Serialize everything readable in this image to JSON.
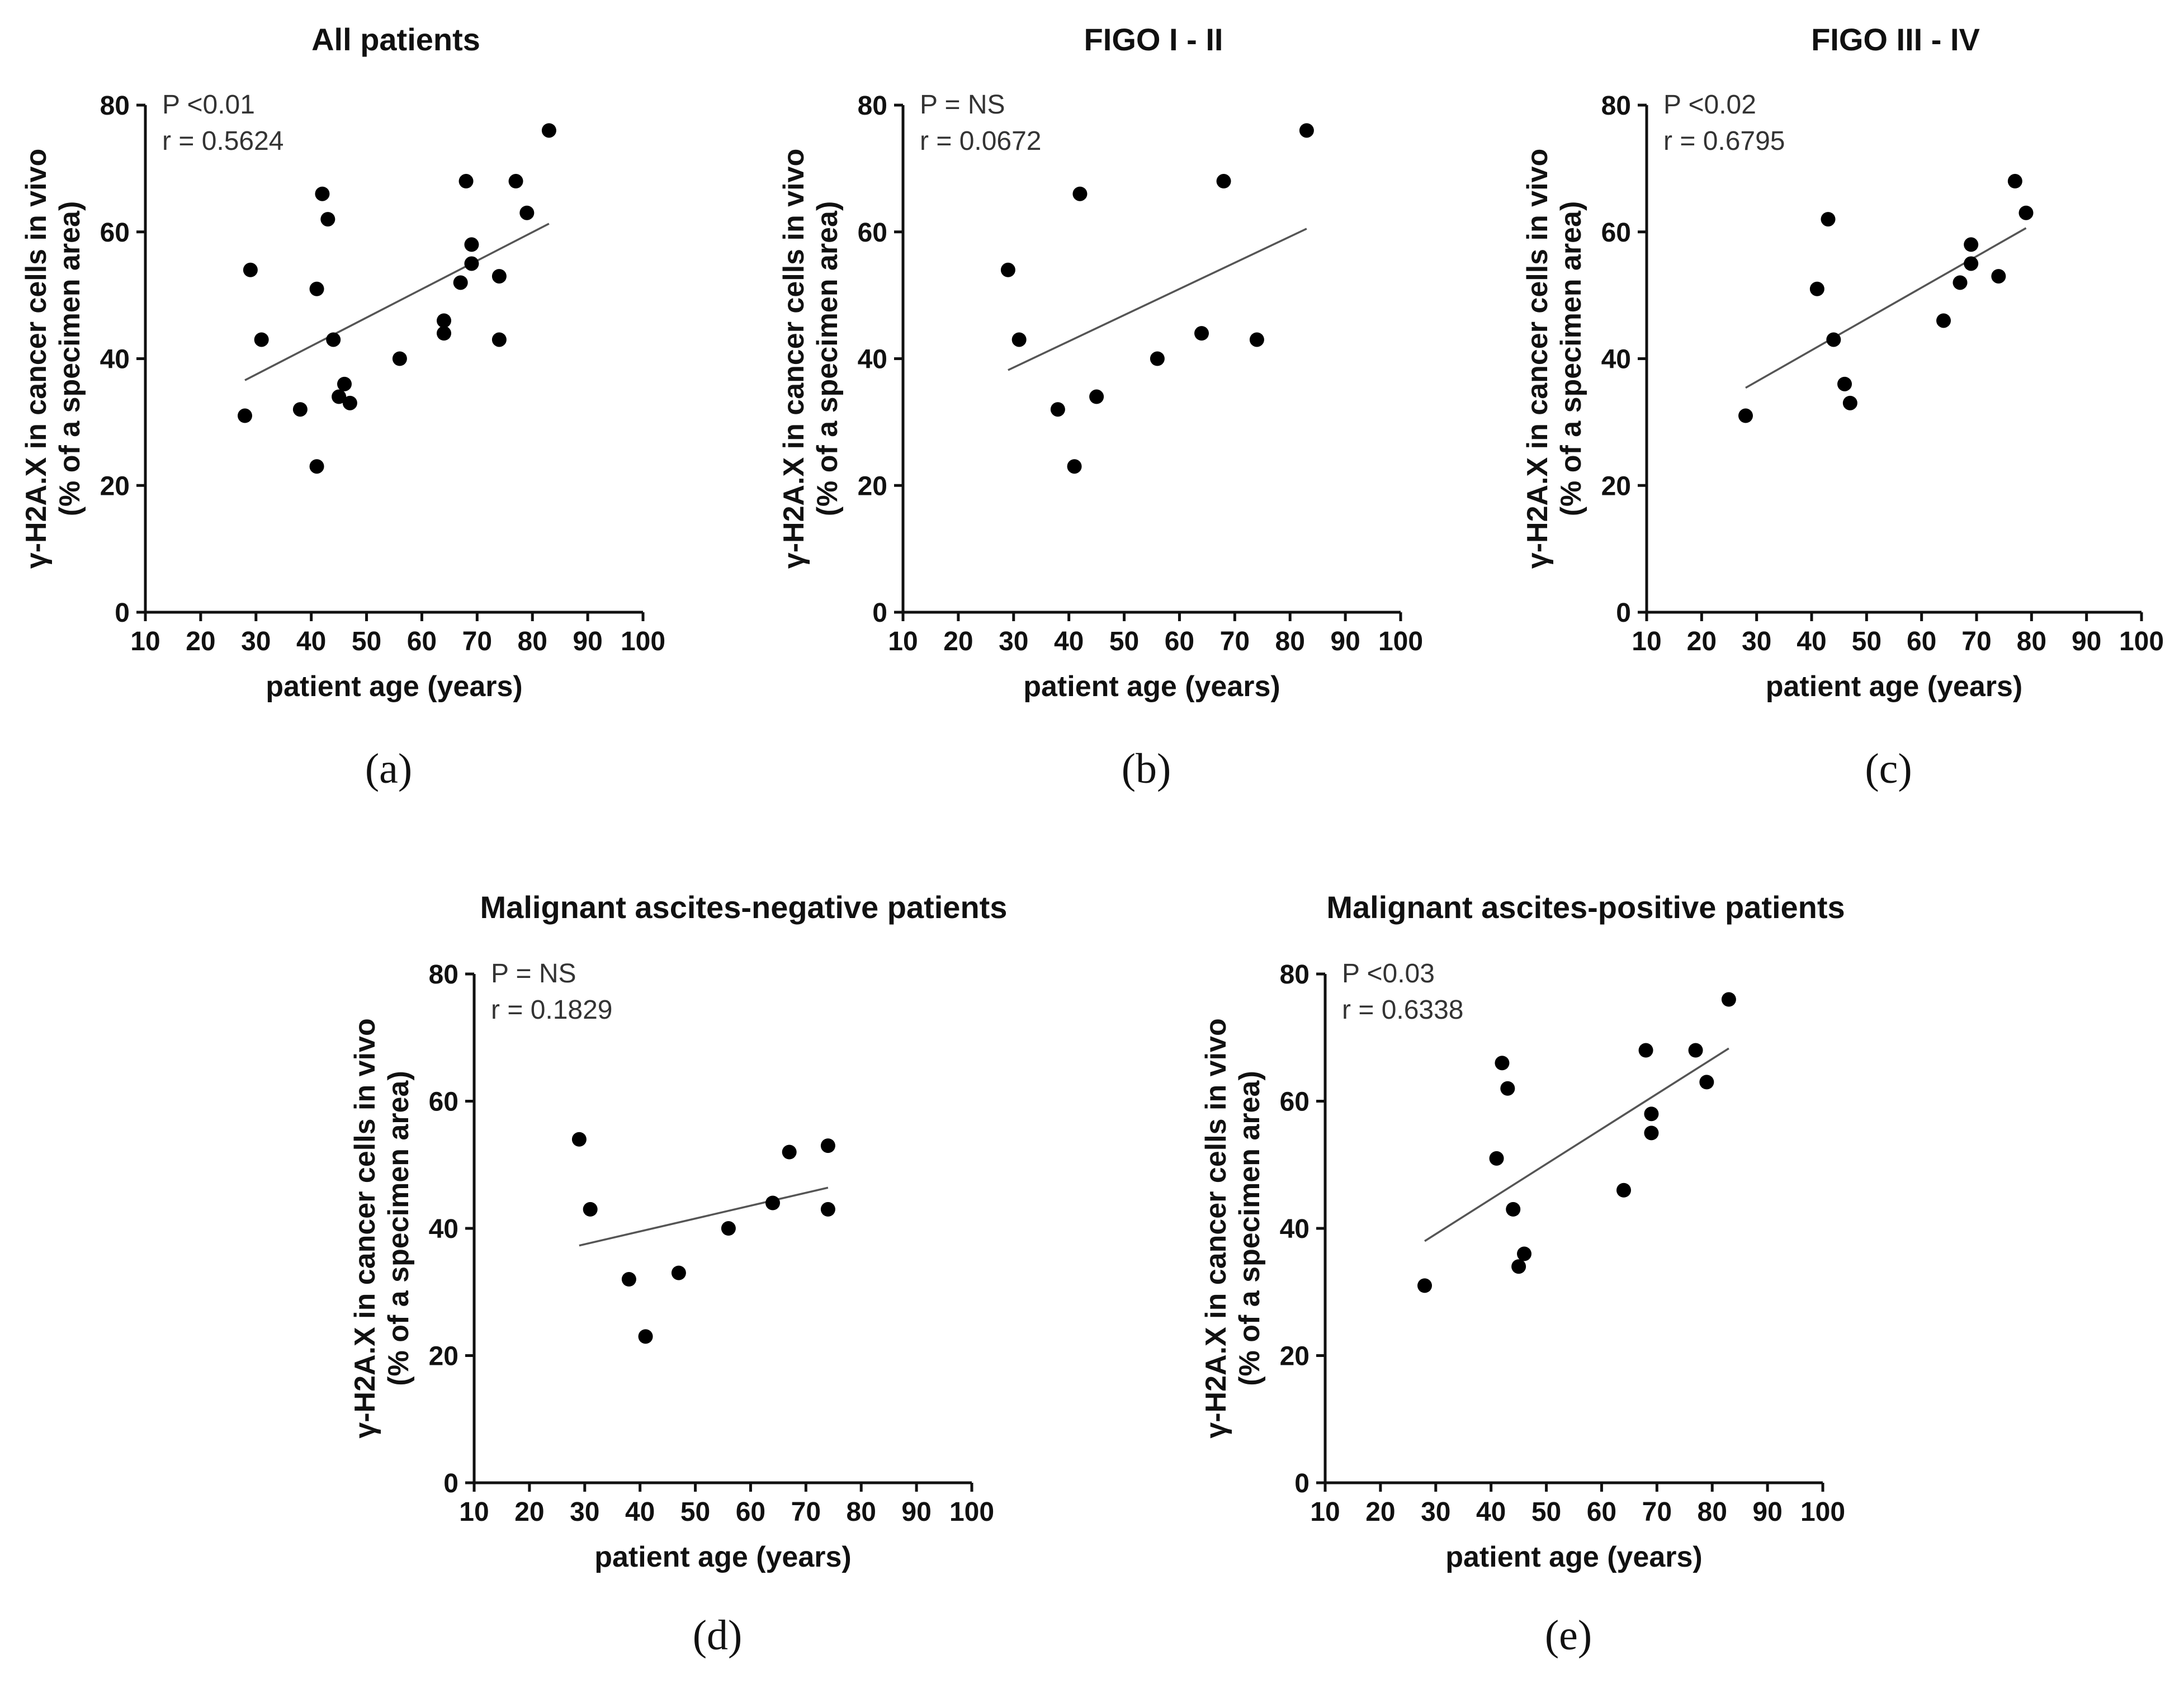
{
  "chart_data": [
    {
      "type": "scatter",
      "title": "All patients",
      "panel_label": "(a)",
      "xlabel": "patient age (years)",
      "ylabel_line1": "γ-H2A.X in cancer cells in vivo",
      "ylabel_line2": "(% of a specimen area)",
      "xlim": [
        10,
        100
      ],
      "ylim": [
        0,
        80
      ],
      "xticks": [
        10,
        20,
        30,
        40,
        50,
        60,
        70,
        80,
        90,
        100
      ],
      "yticks": [
        0,
        20,
        40,
        60,
        80
      ],
      "stat_p": "P <0.01",
      "stat_r": "r = 0.5624",
      "points": [
        [
          28,
          31
        ],
        [
          29,
          54
        ],
        [
          31,
          43
        ],
        [
          38,
          32
        ],
        [
          41,
          51
        ],
        [
          41,
          23
        ],
        [
          42,
          66
        ],
        [
          43,
          62
        ],
        [
          44,
          43
        ],
        [
          45,
          34
        ],
        [
          46,
          36
        ],
        [
          47,
          33
        ],
        [
          56,
          40
        ],
        [
          64,
          46
        ],
        [
          64,
          44
        ],
        [
          67,
          52
        ],
        [
          68,
          68
        ],
        [
          69,
          58
        ],
        [
          69,
          55
        ],
        [
          74,
          53
        ],
        [
          74,
          43
        ],
        [
          77,
          68
        ],
        [
          79,
          63
        ],
        [
          83,
          76
        ]
      ],
      "fit_line": [
        [
          28,
          36.6
        ],
        [
          83,
          61.3
        ]
      ]
    },
    {
      "type": "scatter",
      "title": "FIGO I - II",
      "panel_label": "(b)",
      "xlabel": "patient age (years)",
      "ylabel_line1": "γ-H2A.X in cancer cells in vivo",
      "ylabel_line2": "(% of a specimen area)",
      "xlim": [
        10,
        100
      ],
      "ylim": [
        0,
        80
      ],
      "xticks": [
        10,
        20,
        30,
        40,
        50,
        60,
        70,
        80,
        90,
        100
      ],
      "yticks": [
        0,
        20,
        40,
        60,
        80
      ],
      "stat_p": "P = NS",
      "stat_r": "r = 0.0672",
      "points": [
        [
          29,
          54
        ],
        [
          31,
          43
        ],
        [
          38,
          32
        ],
        [
          41,
          23
        ],
        [
          42,
          66
        ],
        [
          45,
          34
        ],
        [
          56,
          40
        ],
        [
          64,
          44
        ],
        [
          68,
          68
        ],
        [
          74,
          43
        ],
        [
          83,
          76
        ]
      ],
      "fit_line": [
        [
          29,
          38.2
        ],
        [
          83,
          60.5
        ]
      ]
    },
    {
      "type": "scatter",
      "title": "FIGO III - IV",
      "panel_label": "(c)",
      "xlabel": "patient age (years)",
      "ylabel_line1": "γ-H2A.X in cancer cells in vivo",
      "ylabel_line2": "(% of a specimen area)",
      "xlim": [
        10,
        100
      ],
      "ylim": [
        0,
        80
      ],
      "xticks": [
        10,
        20,
        30,
        40,
        50,
        60,
        70,
        80,
        90,
        100
      ],
      "yticks": [
        0,
        20,
        40,
        60,
        80
      ],
      "stat_p": "P <0.02",
      "stat_r": "r = 0.6795",
      "points": [
        [
          28,
          31
        ],
        [
          41,
          51
        ],
        [
          43,
          62
        ],
        [
          44,
          43
        ],
        [
          46,
          36
        ],
        [
          47,
          33
        ],
        [
          64,
          46
        ],
        [
          67,
          52
        ],
        [
          69,
          58
        ],
        [
          69,
          55
        ],
        [
          74,
          53
        ],
        [
          77,
          68
        ],
        [
          79,
          63
        ]
      ],
      "fit_line": [
        [
          28,
          35.4
        ],
        [
          79,
          60.6
        ]
      ]
    },
    {
      "type": "scatter",
      "title": "Malignant ascites-negative patients",
      "panel_label": "(d)",
      "xlabel": "patient age (years)",
      "ylabel_line1": "γ-H2A.X in cancer cells in vivo",
      "ylabel_line2": "(% of a specimen area)",
      "xlim": [
        10,
        100
      ],
      "ylim": [
        0,
        80
      ],
      "xticks": [
        10,
        20,
        30,
        40,
        50,
        60,
        70,
        80,
        90,
        100
      ],
      "yticks": [
        0,
        20,
        40,
        60,
        80
      ],
      "stat_p": "P = NS",
      "stat_r": "r = 0.1829",
      "points": [
        [
          29,
          54
        ],
        [
          31,
          43
        ],
        [
          38,
          32
        ],
        [
          41,
          23
        ],
        [
          47,
          33
        ],
        [
          56,
          40
        ],
        [
          64,
          44
        ],
        [
          67,
          52
        ],
        [
          74,
          53
        ],
        [
          74,
          43
        ]
      ],
      "fit_line": [
        [
          29,
          37.3
        ],
        [
          74,
          46.4
        ]
      ]
    },
    {
      "type": "scatter",
      "title": "Malignant ascites-positive patients",
      "panel_label": "(e)",
      "xlabel": "patient age (years)",
      "ylabel_line1": "γ-H2A.X in cancer cells in vivo",
      "ylabel_line2": "(% of a specimen area)",
      "xlim": [
        10,
        100
      ],
      "ylim": [
        0,
        80
      ],
      "xticks": [
        10,
        20,
        30,
        40,
        50,
        60,
        70,
        80,
        90,
        100
      ],
      "yticks": [
        0,
        20,
        40,
        60,
        80
      ],
      "stat_p": "P <0.03",
      "stat_r": "r = 0.6338",
      "points": [
        [
          28,
          31
        ],
        [
          41,
          51
        ],
        [
          42,
          66
        ],
        [
          43,
          62
        ],
        [
          44,
          43
        ],
        [
          45,
          34
        ],
        [
          46,
          36
        ],
        [
          64,
          46
        ],
        [
          68,
          68
        ],
        [
          69,
          58
        ],
        [
          69,
          55
        ],
        [
          77,
          68
        ],
        [
          79,
          63
        ],
        [
          83,
          76
        ]
      ],
      "fit_line": [
        [
          28,
          38.0
        ],
        [
          83,
          68.3
        ]
      ]
    }
  ]
}
